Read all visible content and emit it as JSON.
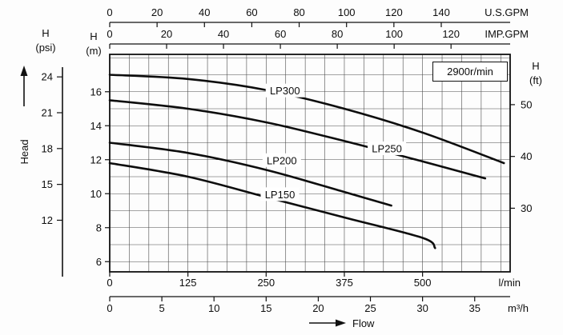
{
  "chart_data": {
    "type": "line",
    "annotation": "2900r/min",
    "flow_label": "Flow",
    "head_label": "Head",
    "x_range_lmin": [
      0,
      640
    ],
    "y_range_m": [
      5.4,
      18.2
    ],
    "grid_step_lmin": 31.25,
    "grid_step_m": 1,
    "axes": {
      "usgpm": {
        "label": "U.S.GPM",
        "ticks": [
          0,
          20,
          40,
          60,
          80,
          100,
          120,
          140
        ],
        "lmin_per_unit": 3.785
      },
      "impgpm": {
        "label": "IMP.GPM",
        "ticks": [
          0,
          20,
          40,
          60,
          80,
          100,
          120
        ],
        "lmin_per_unit": 4.546
      },
      "lmin": {
        "label": "l/min",
        "ticks": [
          0,
          125,
          250,
          375,
          500
        ],
        "lmin_per_unit": 1
      },
      "m3h": {
        "label": "m³/h",
        "ticks": [
          0,
          5,
          10,
          15,
          20,
          25,
          30,
          35
        ],
        "lmin_per_unit": 16.667
      },
      "m": {
        "label_lines": [
          "H",
          "(m)"
        ],
        "ticks": [
          6,
          8,
          10,
          12,
          14,
          16
        ],
        "m_per_unit": 1
      },
      "ft": {
        "label_lines": [
          "H",
          "(ft)"
        ],
        "ticks": [
          30,
          40,
          50
        ],
        "m_per_unit": 0.3048
      },
      "psi": {
        "label_lines": [
          "H",
          "(psi)"
        ],
        "ticks": [
          12,
          15,
          18,
          21,
          24
        ],
        "m_per_unit": 0.7031
      }
    },
    "series": [
      {
        "name": "LP300",
        "points": [
          [
            0,
            17.0
          ],
          [
            125,
            16.75
          ],
          [
            250,
            16.1
          ],
          [
            375,
            15.0
          ],
          [
            500,
            13.6
          ],
          [
            630,
            11.8
          ]
        ],
        "label_at": [
          280,
          16.05
        ]
      },
      {
        "name": "LP250",
        "points": [
          [
            0,
            15.5
          ],
          [
            125,
            15.0
          ],
          [
            250,
            14.2
          ],
          [
            375,
            13.1
          ],
          [
            500,
            11.9
          ],
          [
            600,
            10.9
          ]
        ],
        "label_at": [
          443,
          12.65
        ]
      },
      {
        "name": "LP200",
        "points": [
          [
            0,
            13.0
          ],
          [
            125,
            12.4
          ],
          [
            250,
            11.4
          ],
          [
            375,
            10.1
          ],
          [
            450,
            9.3
          ]
        ],
        "label_at": [
          275,
          11.95
        ]
      },
      {
        "name": "LP150",
        "points": [
          [
            0,
            11.8
          ],
          [
            125,
            11.0
          ],
          [
            250,
            9.8
          ],
          [
            375,
            8.6
          ],
          [
            500,
            7.4
          ],
          [
            520,
            6.8
          ]
        ],
        "label_at": [
          272,
          9.95
        ]
      }
    ]
  }
}
